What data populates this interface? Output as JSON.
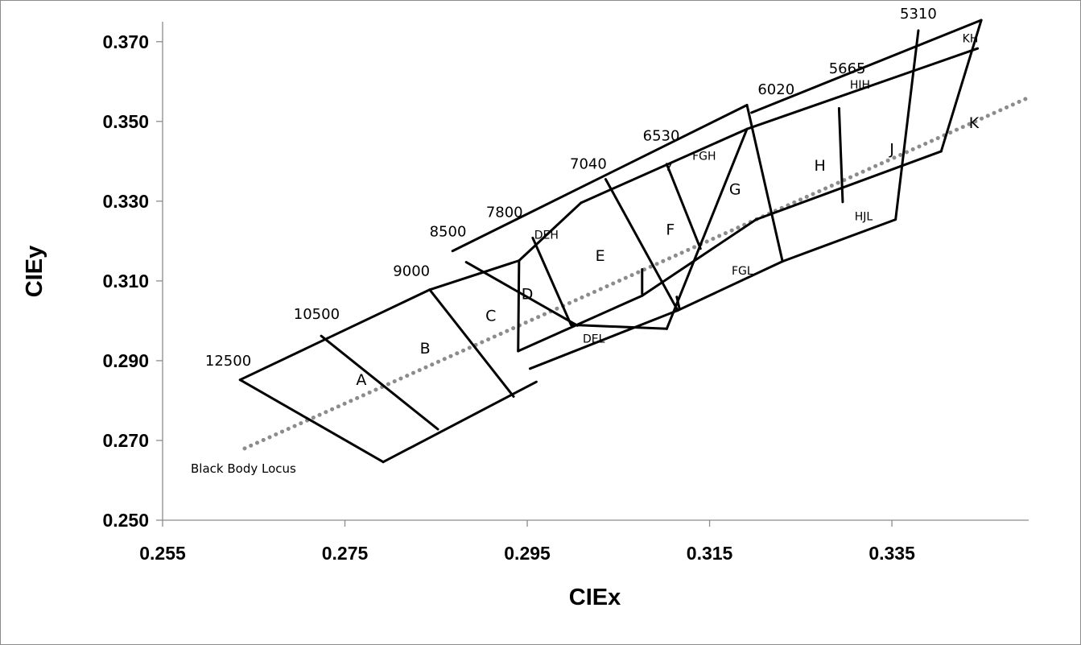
{
  "chart_data": {
    "type": "line",
    "xlabel": "CIEx",
    "ylabel": "CIEy",
    "xlim": [
      0.255,
      0.35
    ],
    "ylim": [
      0.25,
      0.375
    ],
    "x_ticks": [
      "0.255",
      "0.275",
      "0.295",
      "0.315",
      "0.335"
    ],
    "y_ticks": [
      "0.250",
      "0.270",
      "0.290",
      "0.310",
      "0.330",
      "0.350",
      "0.370"
    ],
    "grid": false,
    "locus": {
      "name": "Black Body Locus",
      "start": [
        0.264,
        0.268
      ],
      "end": [
        0.35,
        0.356
      ]
    },
    "edges": [
      [
        [
          0.2635,
          0.2852
        ],
        [
          0.2792,
          0.2646
        ]
      ],
      [
        [
          0.2635,
          0.2852
        ],
        [
          0.2843,
          0.3078
        ]
      ],
      [
        [
          0.2792,
          0.2646
        ],
        [
          0.296,
          0.2847
        ]
      ],
      [
        [
          0.2724,
          0.2962
        ],
        [
          0.2852,
          0.2728
        ]
      ],
      [
        [
          0.2843,
          0.3078
        ],
        [
          0.2935,
          0.281
        ]
      ],
      [
        [
          0.2843,
          0.3078
        ],
        [
          0.2941,
          0.3151
        ]
      ],
      [
        [
          0.2941,
          0.3151
        ],
        [
          0.294,
          0.2924
        ]
      ],
      [
        [
          0.294,
          0.2924
        ],
        [
          0.3076,
          0.3063
        ]
      ],
      [
        [
          0.2868,
          0.3175
        ],
        [
          0.3191,
          0.3541
        ]
      ],
      [
        [
          0.2883,
          0.3147
        ],
        [
          0.3005,
          0.2988
        ]
      ],
      [
        [
          0.2941,
          0.3151
        ],
        [
          0.3009,
          0.3296
        ]
      ],
      [
        [
          0.2956,
          0.3208
        ],
        [
          0.2998,
          0.299
        ]
      ],
      [
        [
          0.2998,
          0.299
        ],
        [
          0.3103,
          0.298
        ]
      ],
      [
        [
          0.3103,
          0.298
        ],
        [
          0.3191,
          0.3481
        ]
      ],
      [
        [
          0.2953,
          0.288
        ],
        [
          0.3115,
          0.3026
        ]
      ],
      [
        [
          0.3009,
          0.3296
        ],
        [
          0.3191,
          0.3481
        ]
      ],
      [
        [
          0.3036,
          0.3355
        ],
        [
          0.3115,
          0.3026
        ]
      ],
      [
        [
          0.3076,
          0.3063
        ],
        [
          0.3201,
          0.3254
        ]
      ],
      [
        [
          0.3114,
          0.306
        ],
        [
          0.3117,
          0.303
        ]
      ],
      [
        [
          0.3076,
          0.3129
        ],
        [
          0.3076,
          0.3068
        ]
      ],
      [
        [
          0.3103,
          0.3393
        ],
        [
          0.314,
          0.3181
        ]
      ],
      [
        [
          0.3115,
          0.3026
        ],
        [
          0.323,
          0.3149
        ]
      ],
      [
        [
          0.3191,
          0.3541
        ],
        [
          0.323,
          0.3149
        ]
      ],
      [
        [
          0.3196,
          0.3522
        ],
        [
          0.3448,
          0.3754
        ]
      ],
      [
        [
          0.3191,
          0.3481
        ],
        [
          0.3444,
          0.3683
        ]
      ],
      [
        [
          0.3201,
          0.3254
        ],
        [
          0.3404,
          0.3425
        ]
      ],
      [
        [
          0.323,
          0.3149
        ],
        [
          0.3354,
          0.3254
        ]
      ],
      [
        [
          0.3292,
          0.3533
        ],
        [
          0.3296,
          0.3298
        ]
      ],
      [
        [
          0.3379,
          0.3728
        ],
        [
          0.3354,
          0.3254
        ]
      ],
      [
        [
          0.3448,
          0.3754
        ],
        [
          0.3404,
          0.3425
        ]
      ]
    ],
    "region_labels": [
      {
        "text": "A",
        "x": 0.2768,
        "y": 0.2851,
        "size": "large"
      },
      {
        "text": "B",
        "x": 0.2838,
        "y": 0.293,
        "size": "large"
      },
      {
        "text": "C",
        "x": 0.291,
        "y": 0.3012,
        "size": "large"
      },
      {
        "text": "D",
        "x": 0.295,
        "y": 0.3066,
        "size": "large"
      },
      {
        "text": "E",
        "x": 0.303,
        "y": 0.3162,
        "size": "large"
      },
      {
        "text": "F",
        "x": 0.3107,
        "y": 0.3228,
        "size": "large"
      },
      {
        "text": "G",
        "x": 0.3178,
        "y": 0.3329,
        "size": "large"
      },
      {
        "text": "H",
        "x": 0.3271,
        "y": 0.3389,
        "size": "large"
      },
      {
        "text": "J",
        "x": 0.335,
        "y": 0.343,
        "size": "large"
      },
      {
        "text": "K",
        "x": 0.344,
        "y": 0.3496,
        "size": "large"
      },
      {
        "text": "DEH",
        "x": 0.2971,
        "y": 0.3214,
        "size": "small"
      },
      {
        "text": "DEL",
        "x": 0.3023,
        "y": 0.2953,
        "size": "small"
      },
      {
        "text": "FGH",
        "x": 0.3144,
        "y": 0.3412,
        "size": "small"
      },
      {
        "text": "FGL",
        "x": 0.3186,
        "y": 0.3124,
        "size": "small"
      },
      {
        "text": "HJH",
        "x": 0.3315,
        "y": 0.359,
        "size": "small"
      },
      {
        "text": "HJL",
        "x": 0.3319,
        "y": 0.326,
        "size": "small"
      },
      {
        "text": "KH",
        "x": 0.3436,
        "y": 0.3707,
        "size": "small"
      }
    ],
    "cct_labels": [
      {
        "text": "12500",
        "x": 0.2622,
        "y": 0.2899
      },
      {
        "text": "10500",
        "x": 0.2719,
        "y": 0.3016
      },
      {
        "text": "9000",
        "x": 0.2823,
        "y": 0.3124
      },
      {
        "text": "8500",
        "x": 0.2863,
        "y": 0.3223
      },
      {
        "text": "7800",
        "x": 0.2925,
        "y": 0.3271
      },
      {
        "text": "7040",
        "x": 0.3017,
        "y": 0.3393
      },
      {
        "text": "6530",
        "x": 0.3097,
        "y": 0.3463
      },
      {
        "text": "6020",
        "x": 0.3223,
        "y": 0.3579
      },
      {
        "text": "5665",
        "x": 0.3301,
        "y": 0.3632
      },
      {
        "text": "5310",
        "x": 0.3379,
        "y": 0.3769
      }
    ],
    "cct_leaders": [
      [
        [
          0.3109,
          0.34
        ],
        [
          0.3104,
          0.3377
        ]
      ]
    ]
  }
}
